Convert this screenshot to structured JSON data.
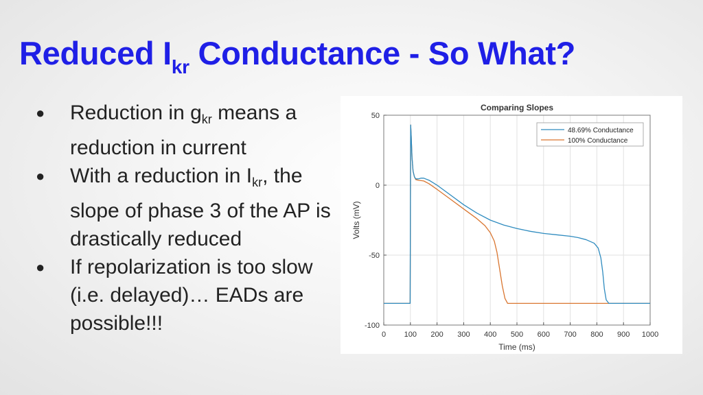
{
  "slide": {
    "title": {
      "main": "Reduced I",
      "sub": "kr",
      "rest": " Conductance - So What?"
    },
    "bullets": [
      {
        "before": "Reduction in g",
        "sub": "kr",
        "after": " means a reduction in current"
      },
      {
        "before": "With a reduction in I",
        "sub": "kr",
        "after": ", the slope of phase 3 of the AP is drastically reduced"
      },
      {
        "before": "If repolarization is too slow (i.e. delayed)… EADs are possible!!!",
        "sub": "",
        "after": ""
      }
    ],
    "bullet_symbol": "●"
  },
  "colors": {
    "title": "#1f1fe6",
    "series_blue": "#2e8bbf",
    "series_orange": "#d9752f"
  },
  "chart_data": {
    "type": "line",
    "title": "Comparing Slopes",
    "xlabel": "Time (ms)",
    "ylabel": "Volts (mV)",
    "xlim": [
      0,
      1000
    ],
    "ylim": [
      -100,
      50
    ],
    "xticks": [
      0,
      100,
      200,
      300,
      400,
      500,
      600,
      700,
      800,
      900,
      1000
    ],
    "yticks": [
      -100,
      -50,
      0,
      50
    ],
    "grid": true,
    "legend_position": "top-right",
    "series": [
      {
        "name": "48.69% Conductance",
        "color": "#2e8bbf",
        "x": [
          0,
          99,
          100,
          101,
          103,
          106,
          110,
          115,
          120,
          130,
          140,
          150,
          170,
          200,
          250,
          300,
          350,
          400,
          450,
          500,
          550,
          600,
          650,
          700,
          730,
          760,
          790,
          805,
          815,
          822,
          828,
          835,
          845,
          860,
          1000
        ],
        "y": [
          -84.5,
          -84.5,
          -20,
          43,
          35,
          20,
          10,
          6,
          4.5,
          4.5,
          5,
          5,
          3.5,
          0,
          -7,
          -14,
          -20,
          -25,
          -28.5,
          -31,
          -33,
          -34.5,
          -35.5,
          -36.5,
          -37.5,
          -39,
          -41.5,
          -45,
          -52,
          -62,
          -74,
          -82,
          -84.5,
          -84.5,
          -84.5
        ]
      },
      {
        "name": "100% Conductance",
        "color": "#d9752f",
        "x": [
          0,
          99,
          100,
          101,
          103,
          106,
          110,
          115,
          120,
          130,
          150,
          170,
          200,
          250,
          300,
          350,
          380,
          400,
          415,
          425,
          435,
          445,
          455,
          465,
          480,
          1000
        ],
        "y": [
          -84.5,
          -84.5,
          -20,
          43,
          35,
          20,
          10,
          6,
          4,
          3.5,
          3,
          1,
          -3,
          -10,
          -17,
          -24,
          -29,
          -34,
          -40,
          -48,
          -60,
          -72,
          -81,
          -84.5,
          -84.5,
          -84.5
        ]
      }
    ]
  }
}
